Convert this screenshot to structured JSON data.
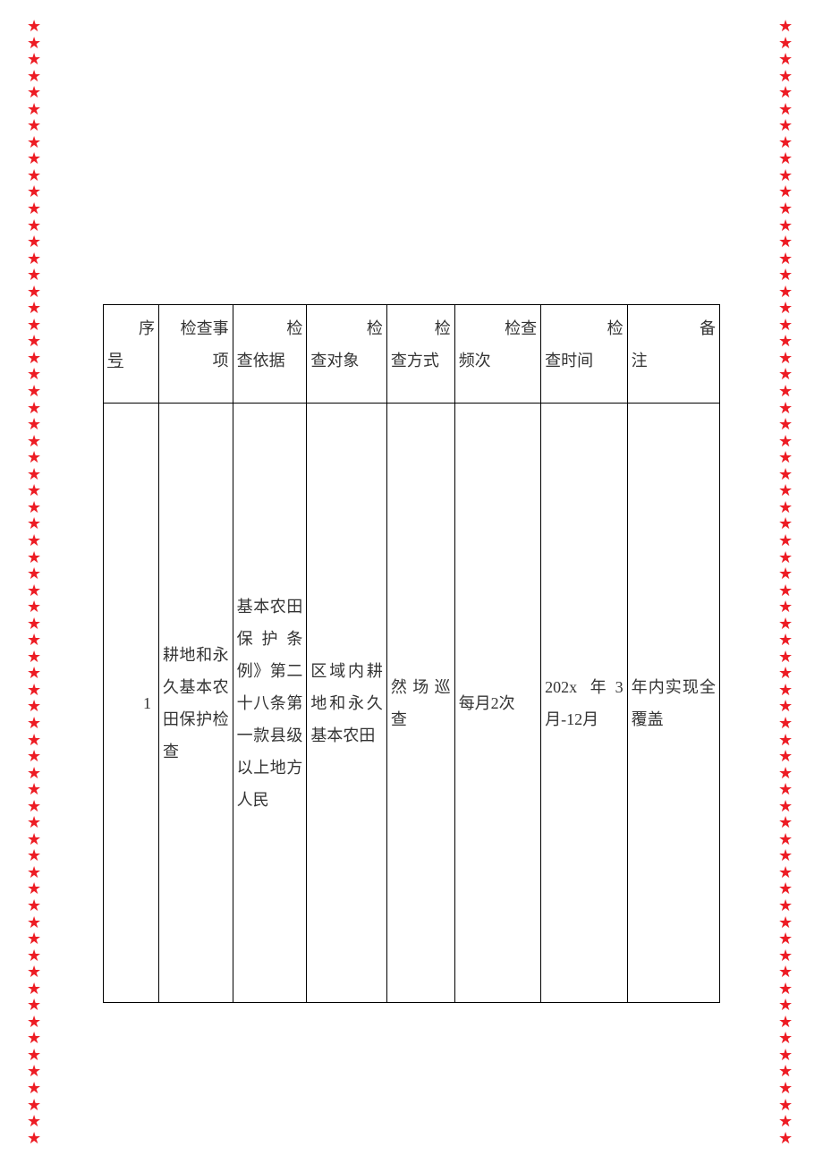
{
  "border": {
    "star_char": "★",
    "star_color": "#ed1c24",
    "star_count": 68
  },
  "table": {
    "headers": {
      "seq": {
        "top": "序",
        "bottom": "号"
      },
      "item": {
        "top": "检查事",
        "bottom": "项"
      },
      "basis": {
        "top": "检",
        "bottom": "查依据"
      },
      "object": {
        "top": "检",
        "bottom": "查对象"
      },
      "method": {
        "top": "检",
        "bottom": "查方式"
      },
      "freq": {
        "top": "检查",
        "bottom": "频次"
      },
      "time": {
        "top": "检",
        "bottom": "查时间"
      },
      "remark": {
        "top": "备",
        "bottom": "注"
      }
    },
    "row": {
      "seq": "1",
      "item": "耕地和永久基本农田保护检查",
      "basis": "基本农田保护条例》第二十八条第一款县级以上地方人民",
      "object": "区域内耕地和永久基本农田",
      "method": "然场巡查",
      "freq": "每月2次",
      "time": "202x 年3 月-12月",
      "remark": "年内实现全覆盖"
    }
  },
  "colors": {
    "border": "#000000",
    "text": "#333333",
    "background": "#ffffff"
  }
}
